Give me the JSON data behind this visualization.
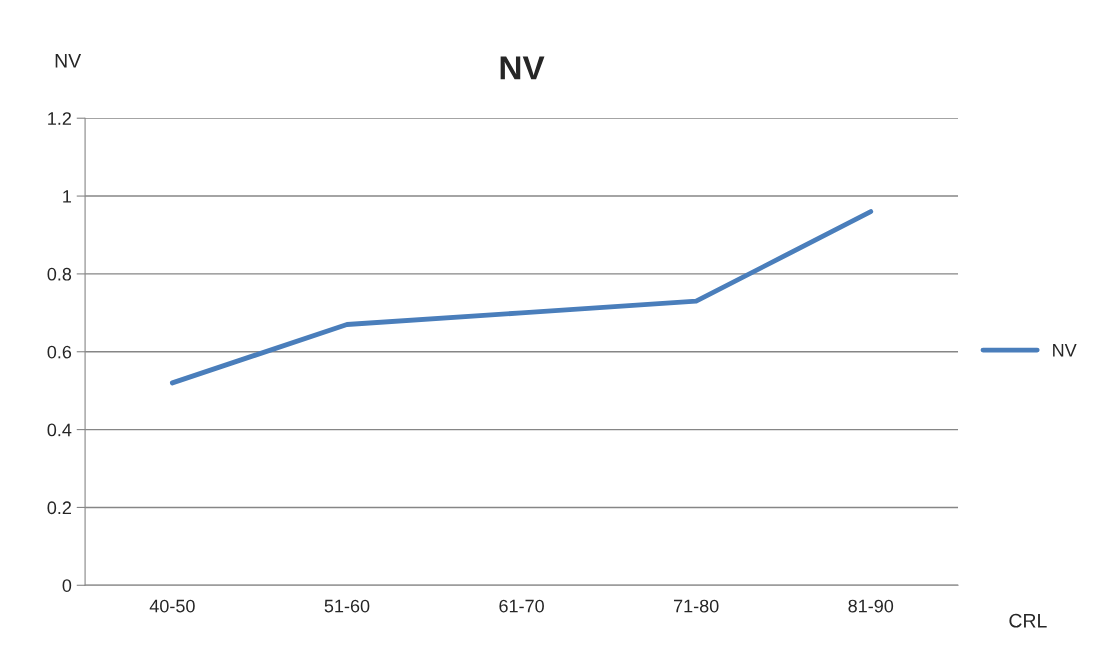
{
  "chart_data": {
    "type": "line",
    "title": "NV",
    "xlabel": "CRL",
    "ylabel": "NV",
    "categories": [
      "40-50",
      "51-60",
      "61-70",
      "71-80",
      "81-90"
    ],
    "series": [
      {
        "name": "NV",
        "color": "#4a7ebb",
        "values": [
          0.52,
          0.67,
          0.7,
          0.73,
          0.96
        ]
      }
    ],
    "ylim": [
      0,
      1.2
    ],
    "yticks": [
      0,
      0.2,
      0.4,
      0.6,
      0.8,
      1,
      1.2
    ],
    "grid": "y",
    "legend": "right",
    "marker": "none",
    "line_style": "solid"
  }
}
